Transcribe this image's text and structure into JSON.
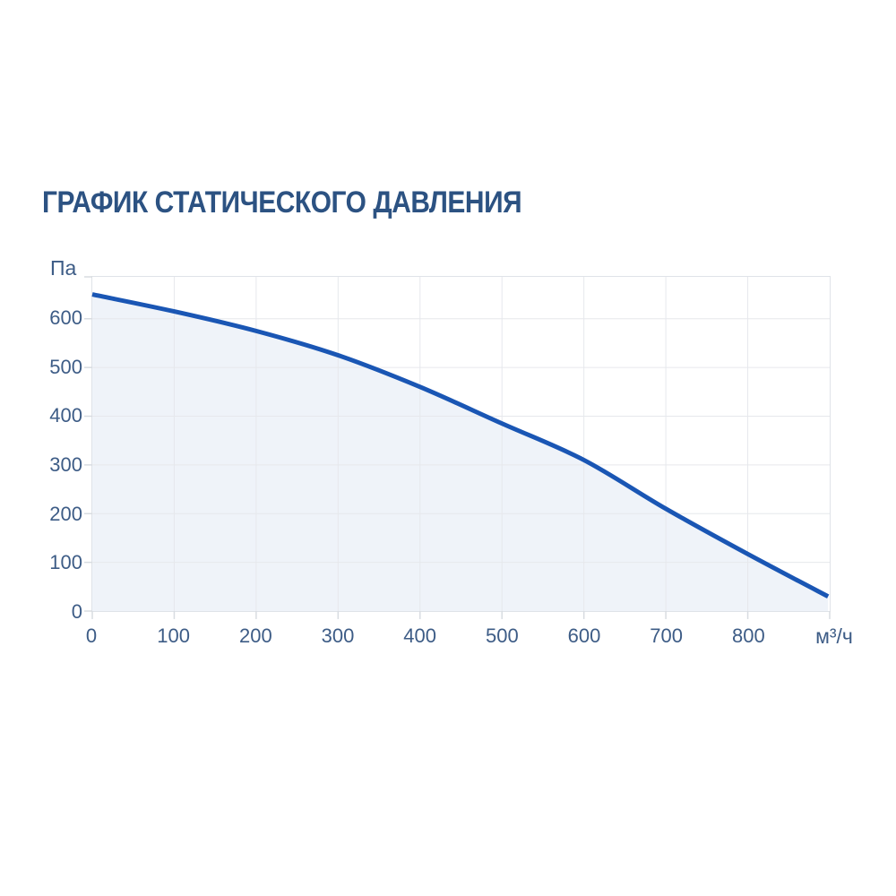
{
  "chart": {
    "title": "ГРАФИК СТАТИЧЕСКОГО ДАВЛЕНИЯ",
    "y_unit": "Па",
    "x_unit": "м³/ч",
    "colors": {
      "title": "#2c5282",
      "labels": "#3d5c86",
      "curve": "#1a56b4",
      "area_fill": "#eff3f9",
      "grid": "#e6e8ec",
      "border": "#dfe3e8",
      "tick": "#d8dce1"
    }
  },
  "chart_data": {
    "type": "line",
    "title": "ГРАФИК СТАТИЧЕСКОГО ДАВЛЕНИЯ",
    "xlabel": "м³/ч",
    "ylabel": "Па",
    "x": [
      0,
      100,
      200,
      300,
      400,
      500,
      600,
      700,
      800,
      898
    ],
    "y": [
      650,
      615,
      575,
      525,
      460,
      385,
      310,
      210,
      117,
      30
    ],
    "xlim": [
      0,
      900
    ],
    "ylim": [
      0,
      686
    ],
    "xticks": [
      0,
      100,
      200,
      300,
      400,
      500,
      600,
      700,
      800
    ],
    "yticks": [
      0,
      100,
      200,
      300,
      400,
      500,
      600
    ],
    "grid": true,
    "legend": false,
    "area_fill_under_curve": true
  }
}
